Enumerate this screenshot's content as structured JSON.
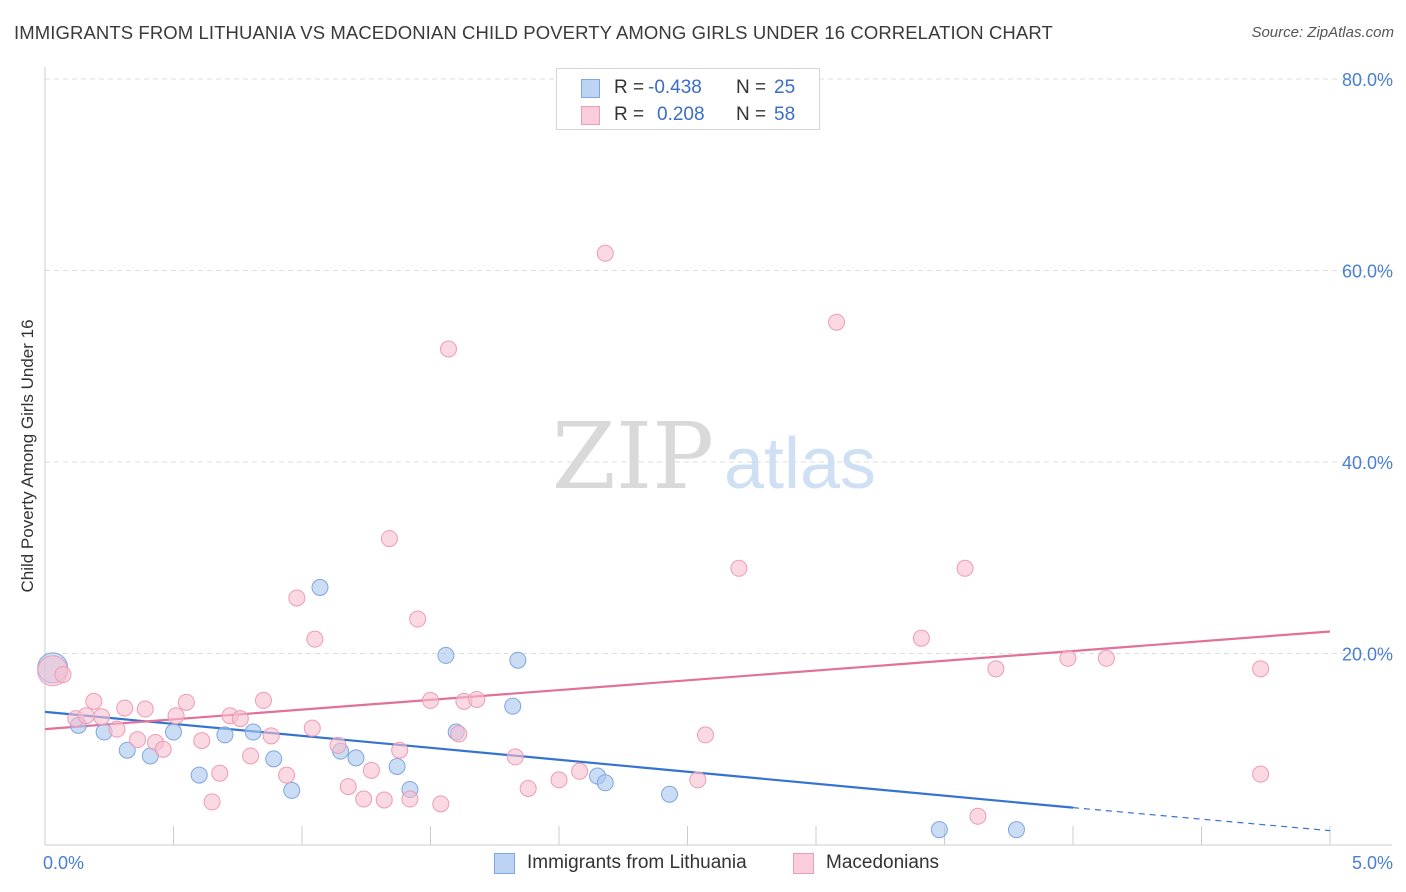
{
  "title": "IMMIGRANTS FROM LITHUANIA VS MACEDONIAN CHILD POVERTY AMONG GIRLS UNDER 16 CORRELATION CHART",
  "source": "Source: ZipAtlas.com",
  "watermark": {
    "zip": "ZIP",
    "atlas": "atlas"
  },
  "colors": {
    "blue_fill": "#a9c6ef",
    "blue_stroke": "#7ea6df",
    "blue_line": "#3573d1",
    "pink_fill": "#f7bfd0",
    "pink_stroke": "#ee9bb6",
    "pink_line": "#e0719a",
    "axis_label": "#4a7fd0",
    "grid": "#dedede"
  },
  "legend": {
    "rows": [
      {
        "r_label": "R =",
        "r_value": "-0.438",
        "n_label": "N =",
        "n_value": "25"
      },
      {
        "r_label": "R =",
        "r_value": "0.208",
        "n_label": "N =",
        "n_value": "58"
      }
    ]
  },
  "bottom_legend": [
    "Immigrants from Lithuania",
    "Macedonians"
  ],
  "chart_data": {
    "type": "scatter",
    "title": "IMMIGRANTS FROM LITHUANIA VS MACEDONIAN CHILD POVERTY AMONG GIRLS UNDER 16 CORRELATION CHART",
    "xlabel": "",
    "ylabel": "Child Poverty Among Girls Under 16",
    "xlim": [
      0,
      5
    ],
    "ylim": [
      0,
      80
    ],
    "x_tick_labels": [
      "0.0%",
      "5.0%"
    ],
    "y_tick_labels": [
      "20.0%",
      "40.0%",
      "60.0%",
      "80.0%"
    ],
    "y_ticks": [
      20,
      40,
      60,
      80
    ],
    "grid": true,
    "legend_position": "top-center",
    "series": [
      {
        "name": "Immigrants from Lithuania",
        "color": "#a9c6ef",
        "points": [
          [
            0.03,
            18.5
          ],
          [
            0.13,
            12.5
          ],
          [
            0.23,
            11.8
          ],
          [
            0.32,
            9.9
          ],
          [
            0.41,
            9.3
          ],
          [
            0.5,
            11.8
          ],
          [
            0.6,
            7.3
          ],
          [
            0.7,
            11.5
          ],
          [
            0.81,
            11.8
          ],
          [
            0.89,
            9.0
          ],
          [
            0.96,
            5.7
          ],
          [
            1.07,
            26.9
          ],
          [
            1.15,
            9.8
          ],
          [
            1.21,
            9.1
          ],
          [
            1.37,
            8.2
          ],
          [
            1.42,
            5.8
          ],
          [
            1.56,
            19.8
          ],
          [
            1.6,
            11.8
          ],
          [
            1.82,
            14.5
          ],
          [
            1.84,
            19.3
          ],
          [
            2.15,
            7.2
          ],
          [
            2.18,
            6.5
          ],
          [
            2.43,
            5.3
          ],
          [
            3.48,
            1.6
          ],
          [
            3.78,
            1.6
          ]
        ],
        "trend": {
          "x": [
            0,
            4.0
          ],
          "y": [
            13.9,
            3.9
          ],
          "dashed_to": [
            5.0,
            1.5
          ]
        }
      },
      {
        "name": "Macedonians",
        "color": "#f7bfd0",
        "points": [
          [
            0.03,
            18.2
          ],
          [
            0.07,
            17.8
          ],
          [
            0.12,
            13.2
          ],
          [
            0.19,
            15.0
          ],
          [
            0.22,
            13.4
          ],
          [
            0.28,
            12.1
          ],
          [
            0.31,
            14.3
          ],
          [
            0.36,
            11.0
          ],
          [
            0.39,
            14.2
          ],
          [
            0.43,
            10.7
          ],
          [
            0.46,
            10.0
          ],
          [
            0.51,
            13.5
          ],
          [
            0.55,
            14.9
          ],
          [
            0.61,
            10.9
          ],
          [
            0.65,
            4.5
          ],
          [
            0.68,
            7.5
          ],
          [
            0.72,
            13.5
          ],
          [
            0.76,
            13.2
          ],
          [
            0.8,
            9.3
          ],
          [
            0.85,
            15.1
          ],
          [
            0.88,
            11.4
          ],
          [
            0.94,
            7.3
          ],
          [
            0.98,
            25.8
          ],
          [
            1.04,
            12.2
          ],
          [
            1.05,
            21.5
          ],
          [
            1.14,
            10.4
          ],
          [
            1.18,
            6.1
          ],
          [
            1.24,
            4.8
          ],
          [
            1.27,
            7.8
          ],
          [
            1.32,
            4.7
          ],
          [
            1.34,
            32.0
          ],
          [
            1.38,
            9.9
          ],
          [
            1.42,
            4.8
          ],
          [
            1.45,
            23.6
          ],
          [
            1.5,
            15.1
          ],
          [
            1.54,
            4.3
          ],
          [
            1.57,
            51.8
          ],
          [
            1.61,
            11.6
          ],
          [
            1.63,
            15.0
          ],
          [
            1.68,
            15.2
          ],
          [
            1.83,
            9.2
          ],
          [
            1.88,
            5.9
          ],
          [
            2.0,
            6.8
          ],
          [
            2.08,
            7.7
          ],
          [
            2.18,
            61.8
          ],
          [
            2.54,
            6.8
          ],
          [
            2.57,
            11.5
          ],
          [
            2.7,
            28.9
          ],
          [
            3.08,
            54.6
          ],
          [
            3.41,
            21.6
          ],
          [
            3.58,
            28.9
          ],
          [
            3.63,
            3.0
          ],
          [
            3.7,
            18.4
          ],
          [
            3.98,
            19.5
          ],
          [
            4.13,
            19.5
          ],
          [
            4.73,
            7.4
          ],
          [
            4.73,
            18.4
          ],
          [
            0.16,
            13.5
          ]
        ],
        "trend": {
          "x": [
            0,
            5.0
          ],
          "y": [
            12.1,
            22.3
          ]
        }
      }
    ]
  }
}
